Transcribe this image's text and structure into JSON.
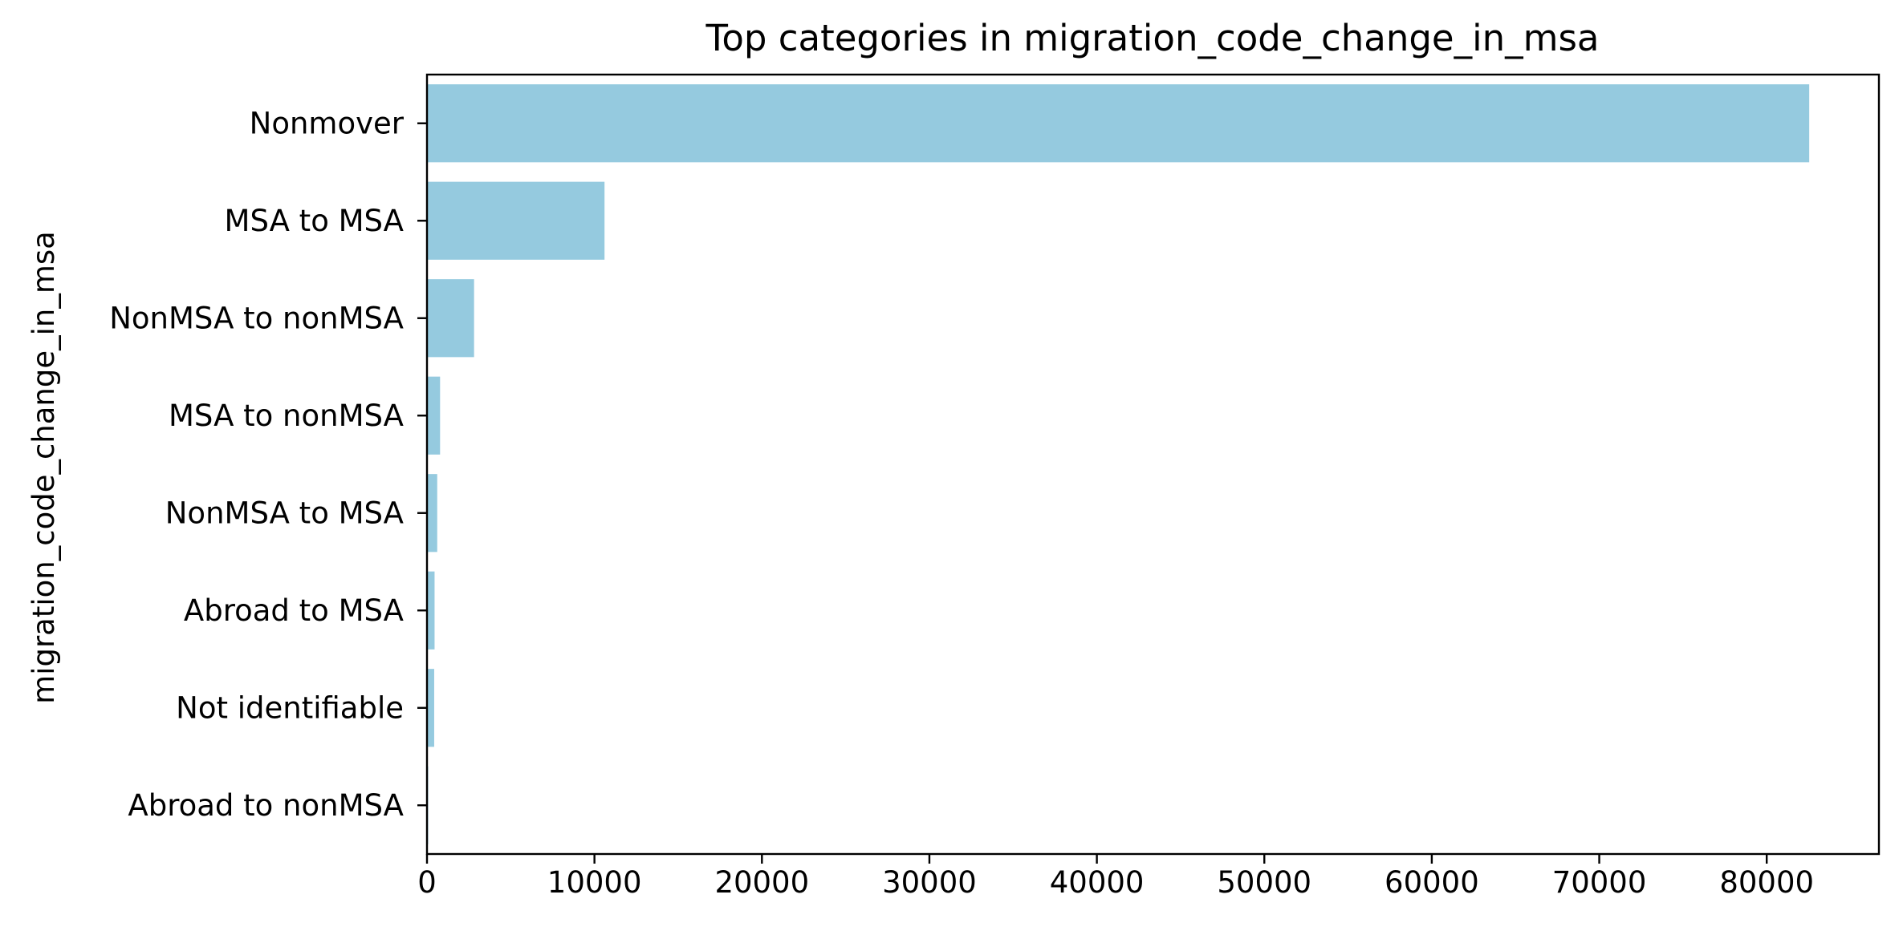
{
  "chart_data": {
    "type": "bar",
    "orientation": "horizontal",
    "title": "Top categories in migration_code_change_in_msa",
    "xlabel": "",
    "ylabel": "migration_code_change_in_msa",
    "categories": [
      "Nonmover",
      "MSA to MSA",
      "NonMSA to nonMSA",
      "MSA to nonMSA",
      "NonMSA to MSA",
      "Abroad to MSA",
      "Not identifiable",
      "Abroad to nonMSA"
    ],
    "values": [
      82538,
      10601,
      2811,
      781,
      611,
      453,
      430,
      73
    ],
    "xlim": [
      0,
      86700
    ],
    "xticks": [
      0,
      10000,
      20000,
      30000,
      40000,
      50000,
      60000,
      70000,
      80000
    ],
    "xtick_labels": [
      "0",
      "10000",
      "20000",
      "30000",
      "40000",
      "50000",
      "60000",
      "70000",
      "80000"
    ],
    "bar_color": "#95cadf",
    "grid": false,
    "legend": "none"
  }
}
